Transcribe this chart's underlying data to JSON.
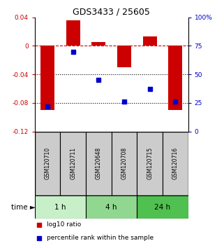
{
  "title": "GDS3433 / 25605",
  "samples": [
    "GSM120710",
    "GSM120711",
    "GSM120648",
    "GSM120708",
    "GSM120715",
    "GSM120716"
  ],
  "log10_ratio": [
    -0.09,
    0.036,
    0.005,
    -0.03,
    0.013,
    -0.09
  ],
  "percentile_rank": [
    22,
    70,
    45,
    26,
    37,
    26
  ],
  "groups": [
    {
      "label": "1 h",
      "indices": [
        0,
        1
      ],
      "color": "#c8f0c8"
    },
    {
      "label": "4 h",
      "indices": [
        2,
        3
      ],
      "color": "#90d890"
    },
    {
      "label": "24 h",
      "indices": [
        4,
        5
      ],
      "color": "#50c050"
    }
  ],
  "bar_color": "#cc0000",
  "dot_color": "#0000cc",
  "ylim_left": [
    -0.12,
    0.04
  ],
  "ylim_right": [
    0,
    100
  ],
  "yticks_left": [
    -0.12,
    -0.08,
    -0.04,
    0.0,
    0.04
  ],
  "ytick_labels_left": [
    "-0.12",
    "-0.08",
    "-0.04",
    "0",
    "0.04"
  ],
  "yticks_right": [
    0,
    25,
    50,
    75,
    100
  ],
  "ytick_labels_right": [
    "0",
    "25",
    "50",
    "75",
    "100%"
  ],
  "zero_line_color": "#cc0000",
  "grid_color": "#000000",
  "sample_box_color": "#cccccc",
  "time_label": "time",
  "time_arrow": "►",
  "legend_bar_label": "log10 ratio",
  "legend_dot_label": "percentile rank within the sample"
}
